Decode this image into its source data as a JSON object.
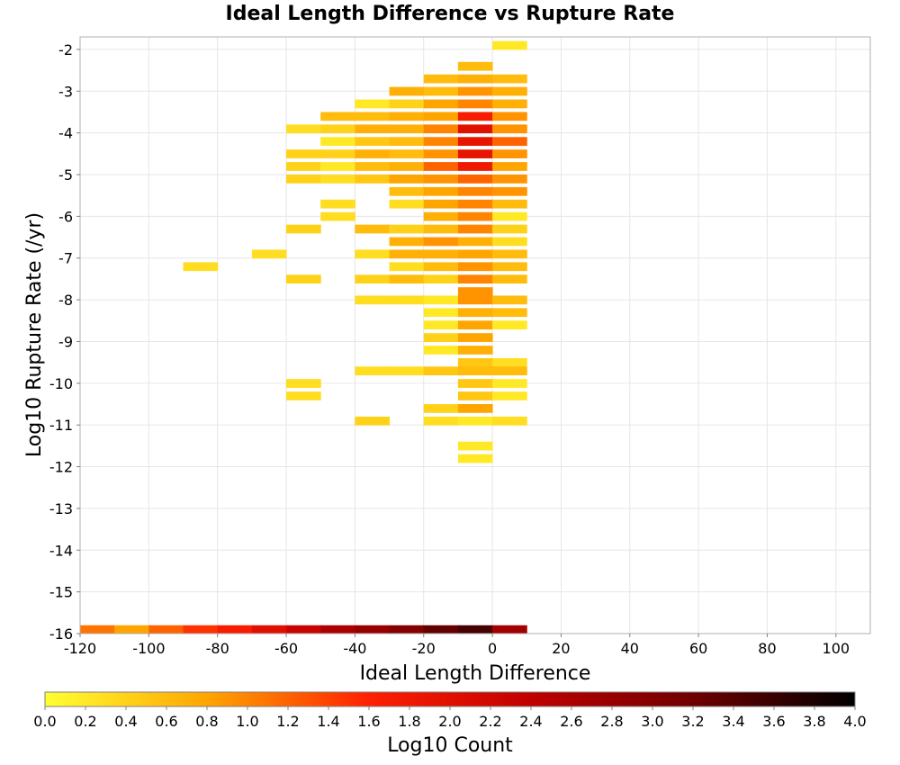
{
  "chart_data": {
    "type": "heatmap",
    "title": "Ideal Length Difference vs Rupture Rate",
    "xlabel": "Ideal Length Difference",
    "ylabel": "Log10 Rupture Rate (/yr)",
    "xlim": [
      -120,
      110
    ],
    "ylim": [
      -16,
      -1.7
    ],
    "xticks": [
      -120,
      -100,
      -80,
      -60,
      -40,
      -20,
      0,
      20,
      40,
      60,
      80,
      100
    ],
    "yticks": [
      -2,
      -3,
      -4,
      -5,
      -6,
      -7,
      -8,
      -9,
      -10,
      -11,
      -12,
      -13,
      -14,
      -15,
      -16
    ],
    "grid": true,
    "bin_width": 10,
    "bin_height": 0.2,
    "colorbar": {
      "label": "Log10 Count",
      "range": [
        0,
        4
      ],
      "ticks": [
        "0.0",
        "0.2",
        "0.4",
        "0.6",
        "0.8",
        "1.0",
        "1.2",
        "1.4",
        "1.6",
        "1.8",
        "2.0",
        "2.2",
        "2.4",
        "2.6",
        "2.8",
        "3.0",
        "3.2",
        "3.4",
        "3.6",
        "3.8",
        "4.0"
      ],
      "stops": [
        "#ffff33",
        "#ffa500",
        "#ff2000",
        "#c00000",
        "#700000",
        "#000000"
      ]
    },
    "cells": [
      [
        0,
        -2.0,
        0.2
      ],
      [
        -10,
        -2.5,
        0.6
      ],
      [
        -20,
        -2.8,
        0.6
      ],
      [
        -10,
        -2.8,
        0.7
      ],
      [
        0,
        -2.8,
        0.6
      ],
      [
        -30,
        -3.1,
        0.7
      ],
      [
        -20,
        -3.1,
        0.6
      ],
      [
        -10,
        -3.1,
        0.9
      ],
      [
        0,
        -3.1,
        0.7
      ],
      [
        -40,
        -3.4,
        0.2
      ],
      [
        -30,
        -3.4,
        0.4
      ],
      [
        -20,
        -3.4,
        0.8
      ],
      [
        -10,
        -3.4,
        1.0
      ],
      [
        0,
        -3.4,
        0.7
      ],
      [
        -50,
        -3.7,
        0.6
      ],
      [
        -40,
        -3.7,
        0.6
      ],
      [
        -30,
        -3.7,
        0.7
      ],
      [
        -20,
        -3.7,
        0.8
      ],
      [
        -10,
        -3.7,
        1.7
      ],
      [
        0,
        -3.7,
        0.9
      ],
      [
        -60,
        -4.0,
        0.3
      ],
      [
        -50,
        -4.0,
        0.4
      ],
      [
        -40,
        -4.0,
        0.7
      ],
      [
        -30,
        -4.0,
        0.7
      ],
      [
        -20,
        -4.0,
        1.0
      ],
      [
        -10,
        -4.0,
        2.0
      ],
      [
        0,
        -4.0,
        0.9
      ],
      [
        -50,
        -4.3,
        0.2
      ],
      [
        -40,
        -4.3,
        0.5
      ],
      [
        -30,
        -4.3,
        0.6
      ],
      [
        -20,
        -4.3,
        1.0
      ],
      [
        -10,
        -4.3,
        1.9
      ],
      [
        0,
        -4.3,
        1.2
      ],
      [
        -60,
        -4.6,
        0.4
      ],
      [
        -50,
        -4.6,
        0.4
      ],
      [
        -40,
        -4.6,
        0.7
      ],
      [
        -30,
        -4.6,
        0.6
      ],
      [
        -20,
        -4.6,
        0.9
      ],
      [
        -10,
        -4.6,
        1.9
      ],
      [
        0,
        -4.6,
        0.9
      ],
      [
        -60,
        -4.9,
        0.4
      ],
      [
        -50,
        -4.9,
        0.2
      ],
      [
        -40,
        -4.9,
        0.6
      ],
      [
        -30,
        -4.9,
        0.7
      ],
      [
        -20,
        -4.9,
        1.2
      ],
      [
        -10,
        -4.9,
        1.8
      ],
      [
        0,
        -4.9,
        0.8
      ],
      [
        -60,
        -5.2,
        0.4
      ],
      [
        -50,
        -5.2,
        0.3
      ],
      [
        -40,
        -5.2,
        0.5
      ],
      [
        -30,
        -5.2,
        0.8
      ],
      [
        -20,
        -5.2,
        0.9
      ],
      [
        -10,
        -5.2,
        1.2
      ],
      [
        0,
        -5.2,
        0.9
      ],
      [
        -30,
        -5.5,
        0.6
      ],
      [
        -20,
        -5.5,
        0.8
      ],
      [
        -10,
        -5.5,
        1.0
      ],
      [
        0,
        -5.5,
        0.9
      ],
      [
        -50,
        -5.8,
        0.3
      ],
      [
        -30,
        -5.8,
        0.3
      ],
      [
        -20,
        -5.8,
        0.8
      ],
      [
        -10,
        -5.8,
        1.0
      ],
      [
        0,
        -5.8,
        0.6
      ],
      [
        -50,
        -6.1,
        0.3
      ],
      [
        -20,
        -6.1,
        0.7
      ],
      [
        -10,
        -6.1,
        1.0
      ],
      [
        0,
        -6.1,
        0.2
      ],
      [
        -60,
        -6.4,
        0.4
      ],
      [
        -40,
        -6.4,
        0.6
      ],
      [
        -30,
        -6.4,
        0.4
      ],
      [
        -20,
        -6.4,
        0.6
      ],
      [
        -10,
        -6.4,
        1.0
      ],
      [
        0,
        -6.4,
        0.4
      ],
      [
        -30,
        -6.7,
        0.7
      ],
      [
        -20,
        -6.7,
        0.9
      ],
      [
        -10,
        -6.7,
        0.7
      ],
      [
        0,
        -6.7,
        0.3
      ],
      [
        -70,
        -7.0,
        0.3
      ],
      [
        -40,
        -7.0,
        0.3
      ],
      [
        -30,
        -7.0,
        0.7
      ],
      [
        -20,
        -7.0,
        0.7
      ],
      [
        -10,
        -7.0,
        0.8
      ],
      [
        0,
        -7.0,
        0.6
      ],
      [
        -90,
        -7.3,
        0.3
      ],
      [
        -30,
        -7.3,
        0.3
      ],
      [
        -20,
        -7.3,
        0.6
      ],
      [
        -10,
        -7.3,
        0.9
      ],
      [
        0,
        -7.3,
        0.6
      ],
      [
        -60,
        -7.6,
        0.4
      ],
      [
        -40,
        -7.6,
        0.4
      ],
      [
        -30,
        -7.6,
        0.6
      ],
      [
        -20,
        -7.6,
        0.4
      ],
      [
        -10,
        -7.6,
        1.0
      ],
      [
        0,
        -7.6,
        0.6
      ],
      [
        -10,
        -7.9,
        0.9
      ],
      [
        -40,
        -8.1,
        0.3
      ],
      [
        -30,
        -8.1,
        0.3
      ],
      [
        -20,
        -8.1,
        0.2
      ],
      [
        -10,
        -8.1,
        0.9
      ],
      [
        0,
        -8.1,
        0.6
      ],
      [
        -20,
        -8.4,
        0.2
      ],
      [
        -10,
        -8.4,
        0.7
      ],
      [
        0,
        -8.4,
        0.6
      ],
      [
        -20,
        -8.7,
        0.2
      ],
      [
        -10,
        -8.7,
        0.8
      ],
      [
        0,
        -8.7,
        0.2
      ],
      [
        -20,
        -9.0,
        0.4
      ],
      [
        -10,
        -9.0,
        0.8
      ],
      [
        -20,
        -9.3,
        0.2
      ],
      [
        -10,
        -9.3,
        0.7
      ],
      [
        -10,
        -9.6,
        0.5
      ],
      [
        0,
        -9.6,
        0.3
      ],
      [
        -40,
        -9.8,
        0.3
      ],
      [
        -30,
        -9.8,
        0.3
      ],
      [
        -20,
        -9.8,
        0.5
      ],
      [
        -10,
        -9.8,
        0.6
      ],
      [
        0,
        -9.8,
        0.6
      ],
      [
        -60,
        -10.1,
        0.3
      ],
      [
        -10,
        -10.1,
        0.5
      ],
      [
        0,
        -10.1,
        0.2
      ],
      [
        -60,
        -10.4,
        0.3
      ],
      [
        -10,
        -10.4,
        0.5
      ],
      [
        0,
        -10.4,
        0.2
      ],
      [
        -20,
        -10.7,
        0.4
      ],
      [
        -10,
        -10.7,
        0.8
      ],
      [
        -40,
        -11.0,
        0.4
      ],
      [
        -20,
        -11.0,
        0.3
      ],
      [
        -10,
        -11.0,
        0.2
      ],
      [
        0,
        -11.0,
        0.3
      ],
      [
        -10,
        -11.6,
        0.2
      ],
      [
        -10,
        -11.9,
        0.2
      ],
      [
        -120,
        -16.0,
        1.1
      ],
      [
        -110,
        -16.0,
        0.8
      ],
      [
        -100,
        -16.0,
        1.2
      ],
      [
        -90,
        -16.0,
        1.5
      ],
      [
        -80,
        -16.0,
        1.7
      ],
      [
        -70,
        -16.0,
        2.0
      ],
      [
        -60,
        -16.0,
        2.3
      ],
      [
        -50,
        -16.0,
        2.6
      ],
      [
        -40,
        -16.0,
        2.8
      ],
      [
        -30,
        -16.0,
        3.0
      ],
      [
        -20,
        -16.0,
        3.3
      ],
      [
        -10,
        -16.0,
        3.5
      ],
      [
        0,
        -16.0,
        2.7
      ]
    ]
  }
}
